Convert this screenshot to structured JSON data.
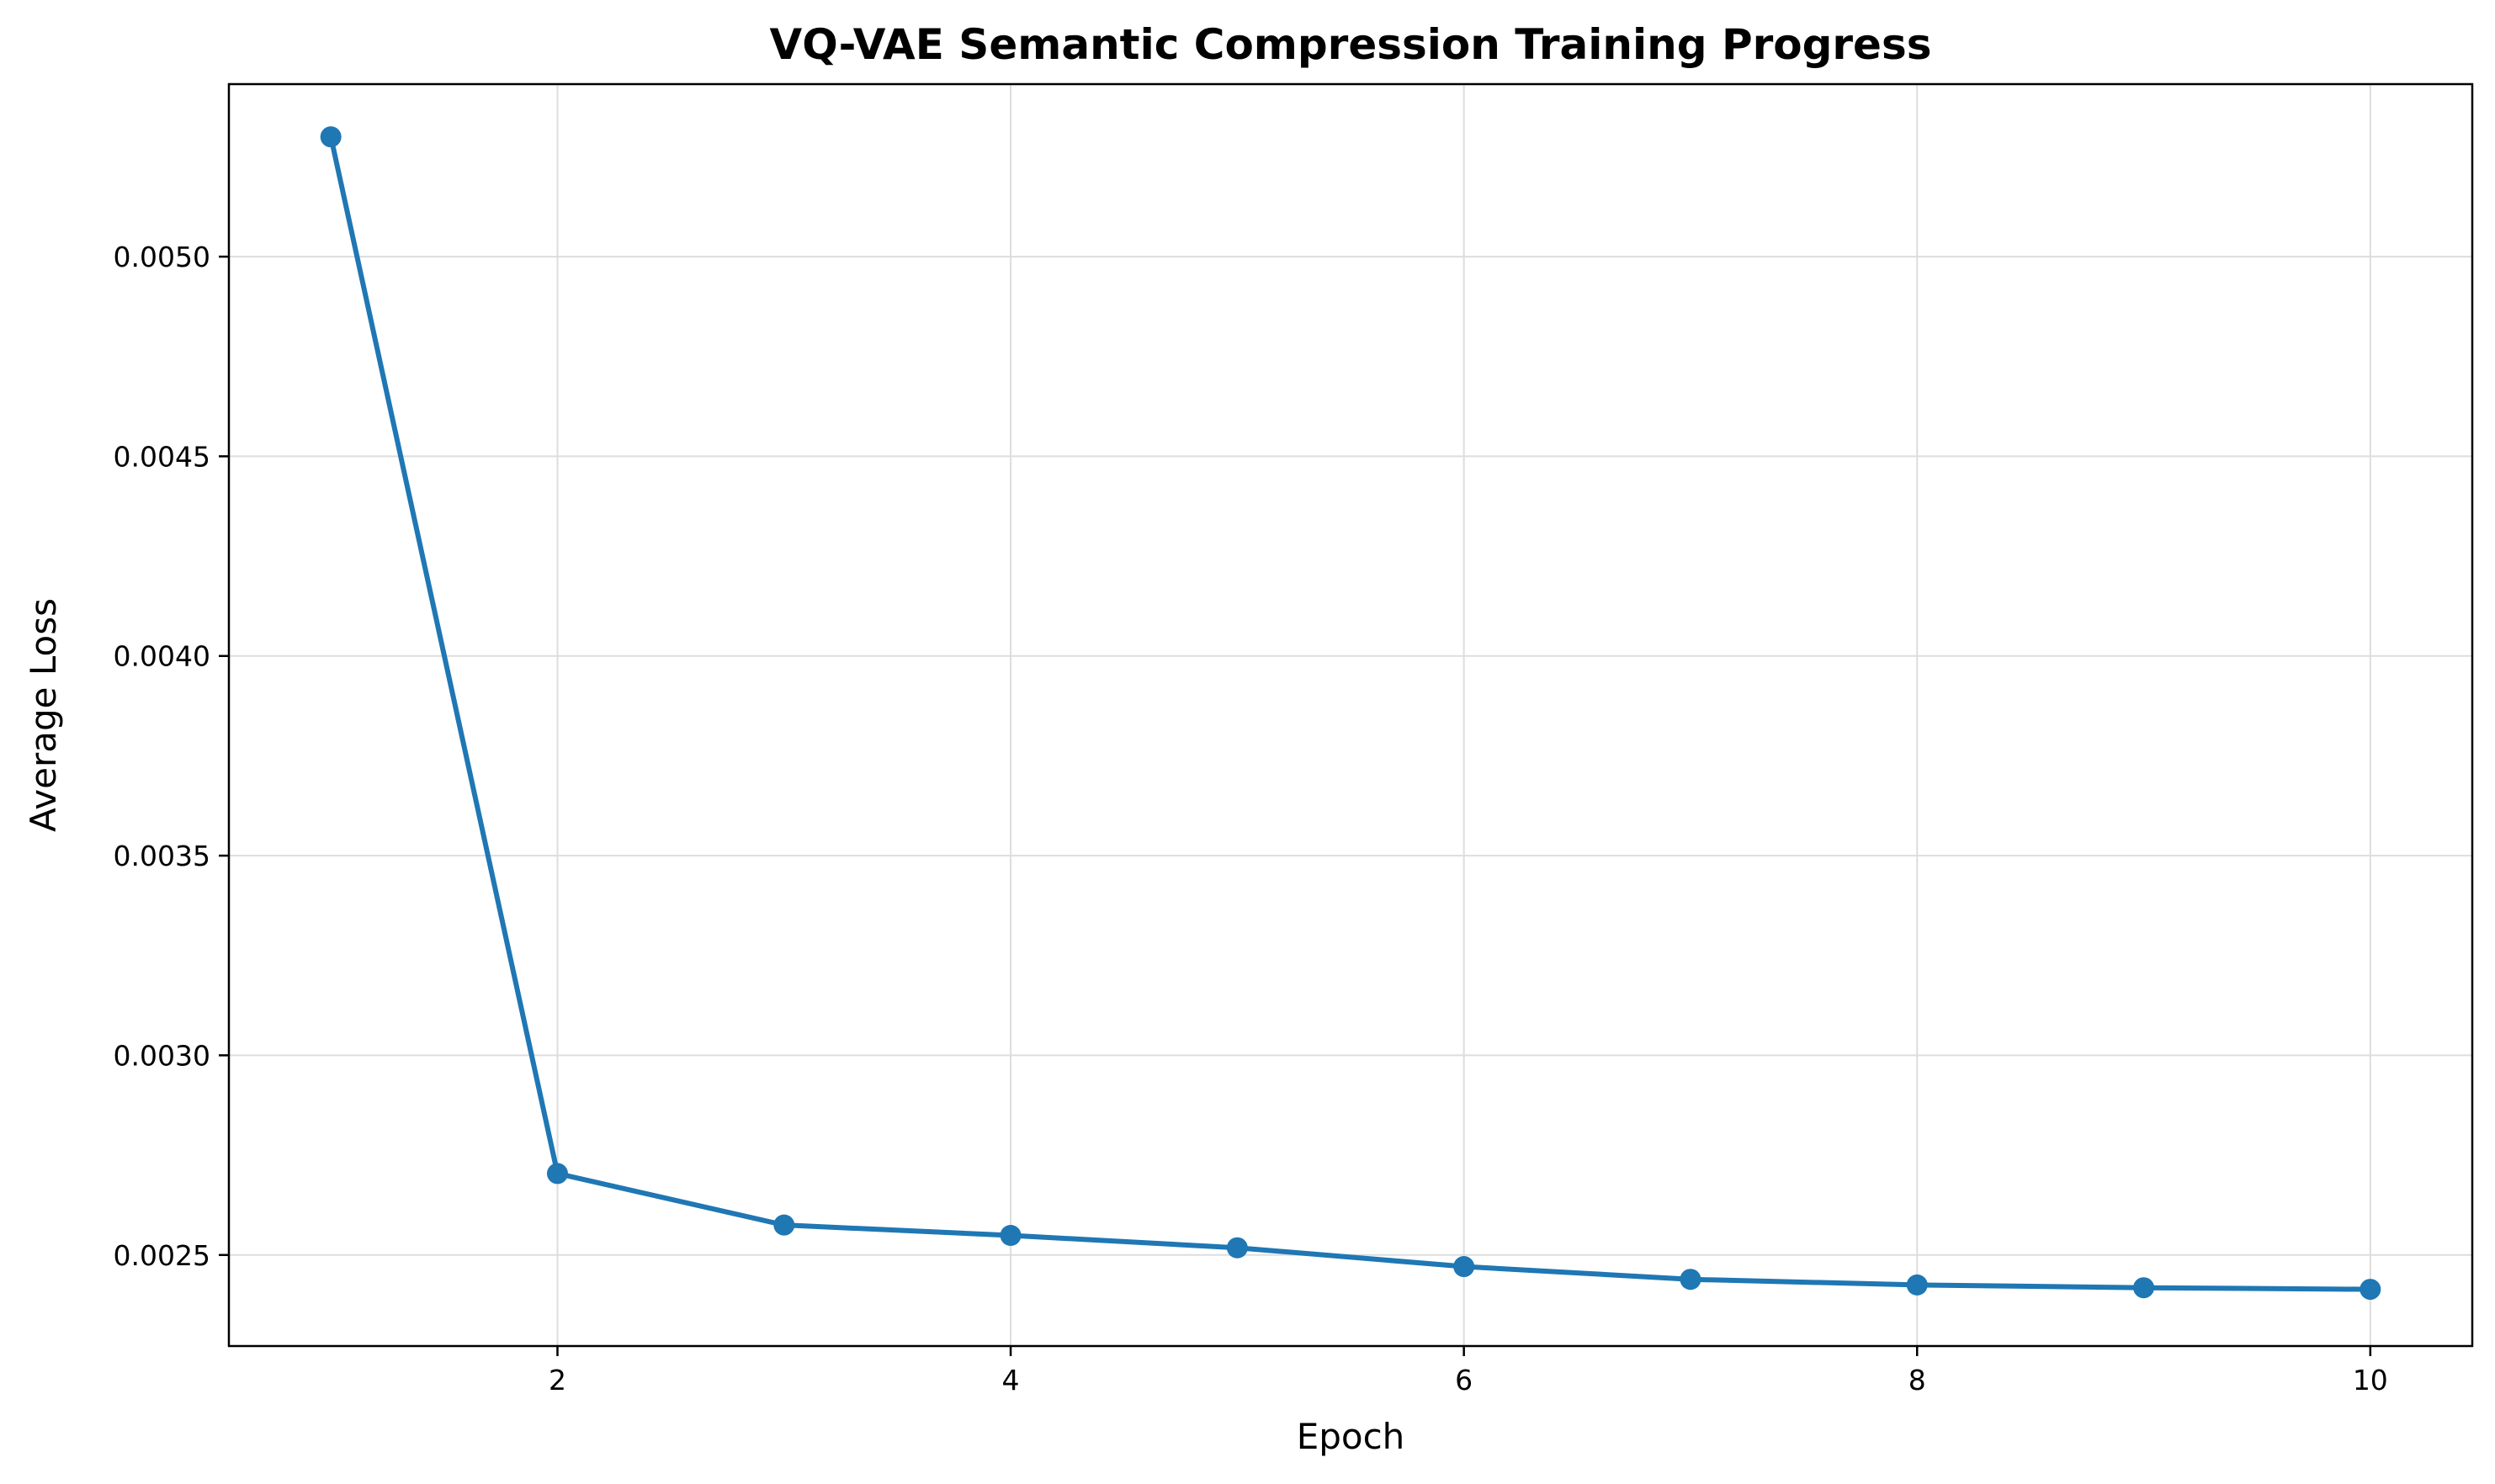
{
  "chart_data": {
    "type": "line",
    "title": "VQ-VAE Semantic Compression Training Progress",
    "xlabel": "Epoch",
    "ylabel": "Average Loss",
    "xlim": [
      0.55,
      10.45
    ],
    "ylim": [
      0.002272,
      0.005432
    ],
    "xticks": [
      2,
      4,
      6,
      8,
      10
    ],
    "xtick_labels": [
      "2",
      "4",
      "6",
      "8",
      "10"
    ],
    "yticks": [
      0.0025,
      0.003,
      0.0035,
      0.004,
      0.0045,
      0.005
    ],
    "ytick_labels": [
      "0.0025",
      "0.0030",
      "0.0035",
      "0.0040",
      "0.0045",
      "0.0050"
    ],
    "grid": true,
    "legend": "none",
    "series": [
      {
        "color": "#1f77b4",
        "marker": "circle",
        "x": [
          1,
          2,
          3,
          4,
          5,
          6,
          7,
          8,
          9,
          10
        ],
        "y": [
          0.0053,
          0.002704,
          0.002575,
          0.002549,
          0.002518,
          0.002471,
          0.002439,
          0.002425,
          0.002418,
          0.002414
        ]
      }
    ]
  }
}
